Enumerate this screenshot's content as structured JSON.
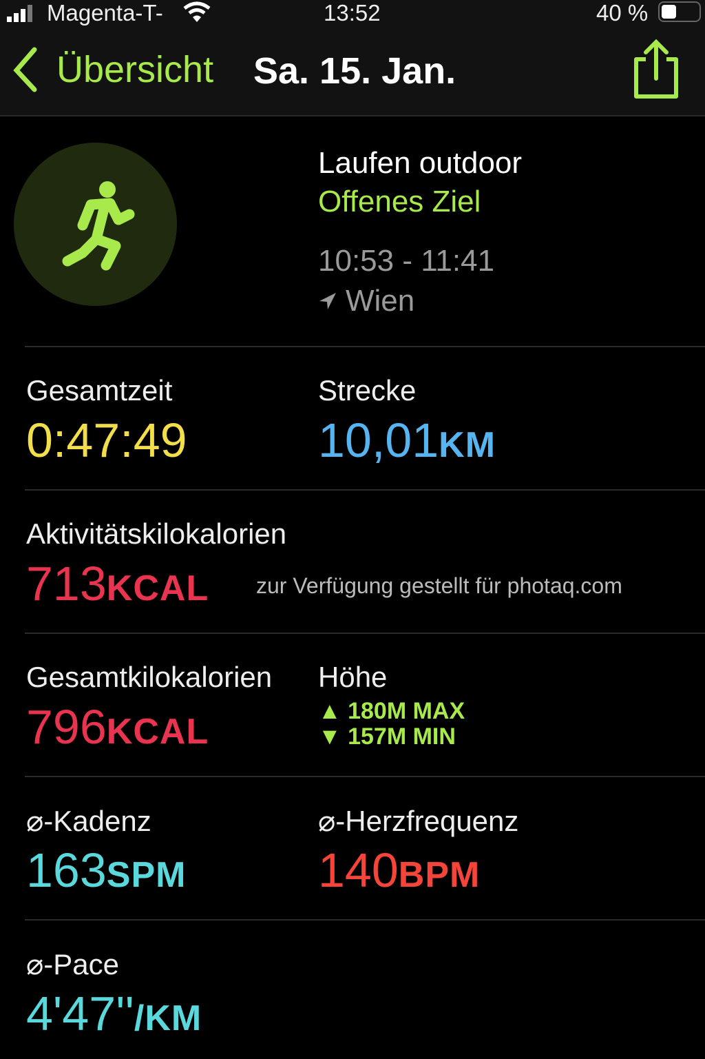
{
  "status_bar": {
    "carrier": "Magenta-T-",
    "time": "13:52",
    "battery": "40 %",
    "battery_level": 0.4
  },
  "nav": {
    "back_label": "Übersicht",
    "title": "Sa. 15. Jan.",
    "share_icon": "share-icon"
  },
  "workout": {
    "type": "Laufen outdoor",
    "goal": "Offenes Ziel",
    "time_range": "10:53 - 11:41",
    "location": "Wien",
    "icon": "running-figure-icon"
  },
  "metrics": {
    "total_time": {
      "label": "Gesamtzeit",
      "value": "0:47:49",
      "color": "#f2dd4a"
    },
    "distance": {
      "label": "Strecke",
      "value": "10,01",
      "unit": "KM",
      "color": "#56b4f0"
    },
    "active_kcal": {
      "label": "Aktivitätskilokalorien",
      "value": "713",
      "unit": "KCAL",
      "color": "#e8344e"
    },
    "total_kcal": {
      "label": "Gesamtkilokalorien",
      "value": "796",
      "unit": "KCAL",
      "color": "#e8344e"
    },
    "elevation": {
      "label": "Höhe",
      "max": "180M MAX",
      "min": "157M MIN",
      "color": "#a8ea4c"
    },
    "cadence": {
      "label": "⌀-Kadenz",
      "value": "163",
      "unit": "SPM",
      "color": "#5ad8dc"
    },
    "heart_rate": {
      "label": "⌀-Herzfrequenz",
      "value": "140",
      "unit": "BPM",
      "color": "#f5453a"
    },
    "pace": {
      "label": "⌀-Pace",
      "value": "4'47''",
      "unit": "/KM",
      "color": "#5ad8dc"
    }
  },
  "watermark": "zur Verfügung gestellt für photaq.com"
}
